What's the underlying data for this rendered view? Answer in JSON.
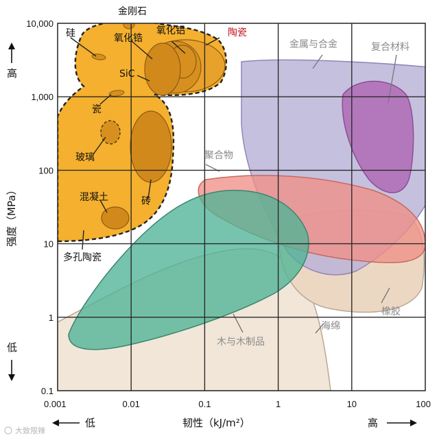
{
  "chart_data": {
    "type": "scatter",
    "title": "",
    "xlabel": "韧性（kJ/m²）",
    "ylabel": "强度（MPa）",
    "xscale": "log",
    "yscale": "log",
    "xlim": [
      0.001,
      100
    ],
    "ylim": [
      0.1,
      10000
    ],
    "x_ticks": [
      "0.001",
      "0.01",
      "0.1",
      "1",
      "10",
      "100"
    ],
    "y_ticks": [
      "0.1",
      "1",
      "10",
      "100",
      "1,000",
      "10,000"
    ],
    "grid": true,
    "x_low_word": "低",
    "x_high_word": "高",
    "y_low_word": "低",
    "y_high_word": "高",
    "regions": [
      {
        "name": "陶瓷",
        "toughness_kJm2": [
          0.001,
          0.2
        ],
        "strength_MPa": [
          10,
          10000
        ],
        "color": "#f4b02e"
      },
      {
        "name": "金属与合金",
        "toughness_kJm2": [
          0.3,
          100
        ],
        "strength_MPa": [
          4,
          3000
        ],
        "color": "#b9b2d8"
      },
      {
        "name": "复合材料",
        "toughness_kJm2": [
          10,
          80
        ],
        "strength_MPa": [
          40,
          700
        ],
        "color": "#b070b8"
      },
      {
        "name": "聚合物",
        "toughness_kJm2": [
          0.1,
          100
        ],
        "strength_MPa": [
          7,
          90
        ],
        "color": "#ef8f86"
      },
      {
        "name": "木与木制品",
        "toughness_kJm2": [
          0.0015,
          1.5
        ],
        "strength_MPa": [
          0.4,
          50
        ],
        "color": "#4fb496"
      },
      {
        "name": "橡胶",
        "toughness_kJm2": [
          1,
          100
        ],
        "strength_MPa": [
          3,
          30
        ],
        "color": "#ecd8c2"
      },
      {
        "name": "海绵",
        "toughness_kJm2": [
          0.001,
          5
        ],
        "strength_MPa": [
          0.1,
          10
        ],
        "color": "#f2e6d8"
      }
    ],
    "materials": [
      {
        "name": "金刚石",
        "toughness_kJm2": 0.009,
        "strength_MPa": 8000
      },
      {
        "name": "硅",
        "toughness_kJm2": 0.004,
        "strength_MPa": 3500
      },
      {
        "name": "氧化锆",
        "toughness_kJm2": 0.05,
        "strength_MPa": 2000
      },
      {
        "name": "氧化铝",
        "toughness_kJm2": 0.05,
        "strength_MPa": 3000
      },
      {
        "name": "SiC",
        "toughness_kJm2": 0.035,
        "strength_MPa": 1500
      },
      {
        "name": "瓷",
        "toughness_kJm2": 0.007,
        "strength_MPa": 1000
      },
      {
        "name": "玻璃",
        "toughness_kJm2": 0.007,
        "strength_MPa": 200
      },
      {
        "name": "砖",
        "toughness_kJm2": 0.02,
        "strength_MPa": 100
      },
      {
        "name": "混凝土",
        "toughness_kJm2": 0.008,
        "strength_MPa": 20
      },
      {
        "name": "多孔陶瓷",
        "toughness_kJm2": 0.002,
        "strength_MPa": 10
      }
    ]
  },
  "labels": {
    "jingangshi": "金刚石",
    "gui": "硅",
    "yanghuagao": "氧化锆",
    "yanghualv": "氧化铝",
    "taoci": "陶瓷",
    "sic": "SiC",
    "ci": "瓷",
    "boli": "玻璃",
    "zhuan": "砖",
    "hunningtu": "混凝土",
    "duokongtaoci": "多孔陶瓷",
    "jinshu": "金属与合金",
    "fuhe": "复合材料",
    "juhewu": "聚合物",
    "mu": "木与木制品",
    "xiangjiao": "橡胶",
    "haimian": "海绵"
  },
  "watermark": "大致限辣",
  "colors": {
    "ceramic": "#f4b02e",
    "ceramic_dark": "#d78f1f",
    "metal": "#b9b2d8",
    "composite": "#b070b8",
    "polymer": "#ef8f86",
    "wood": "#4fb496",
    "rubber": "#ecd8c2",
    "sponge": "#f2e6d8",
    "accent_red": "#c0141c"
  }
}
